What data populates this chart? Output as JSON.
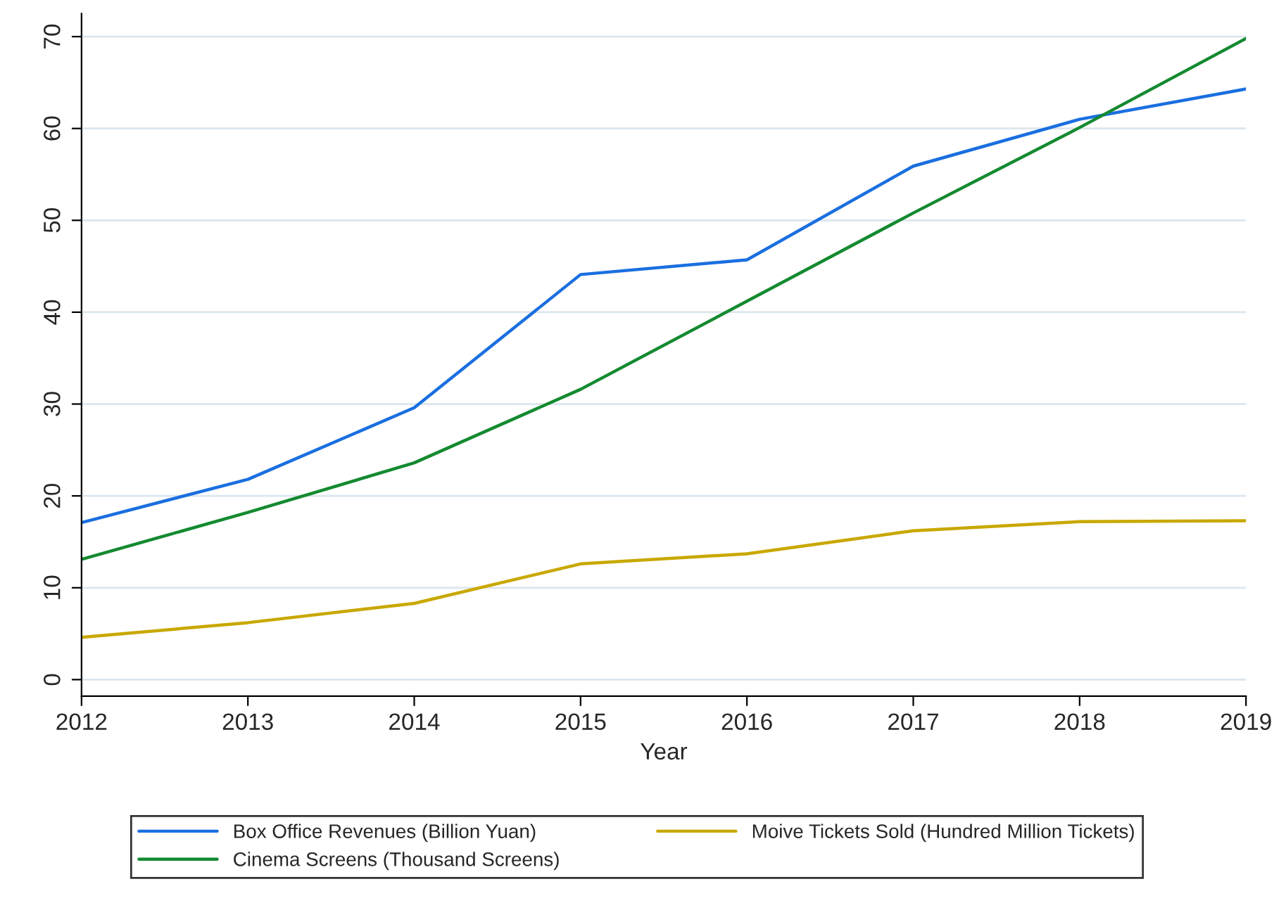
{
  "chart_data": {
    "type": "line",
    "xlabel": "Year",
    "x": [
      2012,
      2013,
      2014,
      2015,
      2016,
      2017,
      2018,
      2019
    ],
    "series": [
      {
        "name": "Box Office Revenues (Billion Yuan)",
        "color": "#1a6fe0",
        "values": [
          17.1,
          21.8,
          29.6,
          44.1,
          45.7,
          55.9,
          61.0,
          64.3
        ]
      },
      {
        "name": "Cinema Screens (Thousand Screens)",
        "color": "#148a30",
        "values": [
          13.1,
          18.2,
          23.6,
          31.6,
          41.2,
          50.8,
          60.1,
          69.8
        ]
      },
      {
        "name": "Moive Tickets Sold (Hundred Million Tickets)",
        "color": "#c8a800",
        "values": [
          4.6,
          6.2,
          8.3,
          12.6,
          13.7,
          16.2,
          17.2,
          17.3
        ]
      }
    ],
    "xlim": [
      2012,
      2019
    ],
    "xticks": [
      2012,
      2013,
      2014,
      2015,
      2016,
      2017,
      2018,
      2019
    ],
    "ylim": [
      -1.8,
      72.5
    ],
    "yticks": [
      0,
      10,
      20,
      30,
      40,
      50,
      60,
      70
    ],
    "grid": "y",
    "legend": "bottom",
    "marker": "none",
    "line_style": "solid"
  }
}
